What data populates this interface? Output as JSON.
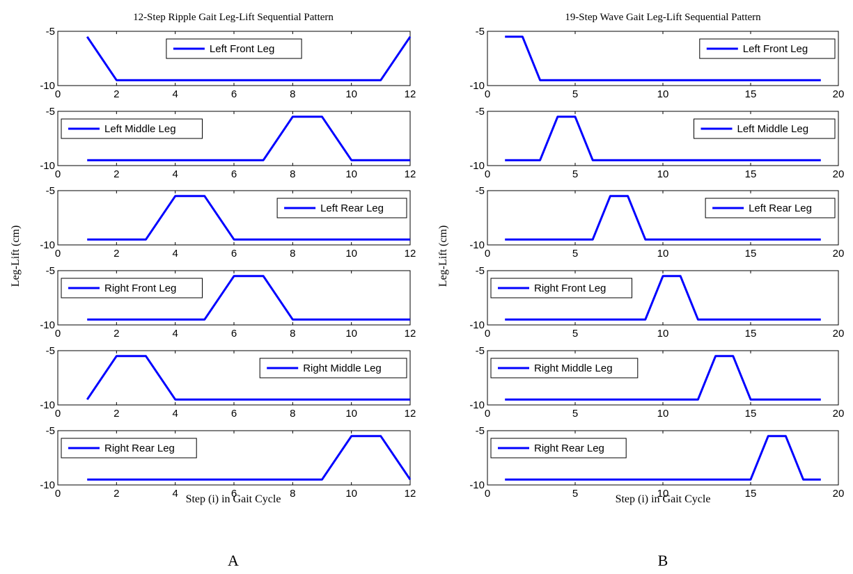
{
  "chart_data": [
    {
      "type": "line",
      "title": "12-Step Ripple Gait Leg-Lift Sequential Pattern",
      "xlabel": "Step (i) in Gait Cycle",
      "ylabel": "Leg-Lift (cm)",
      "panel_label": "A",
      "xlim": [
        0,
        12
      ],
      "ylim": [
        -10,
        -5
      ],
      "xticks": [
        "0",
        "2",
        "4",
        "6",
        "8",
        "10",
        "12"
      ],
      "yticks": [
        "-10",
        "-5"
      ],
      "series_color": "#0000ff",
      "subplots": [
        {
          "name": "Left Front Leg",
          "legend_position": "top-center",
          "x": [
            1,
            2,
            11,
            12
          ],
          "y": [
            -5.5,
            -9.5,
            -9.5,
            -5.5
          ]
        },
        {
          "name": "Left Middle Leg",
          "legend_position": "top-left",
          "x": [
            1,
            7,
            8,
            9,
            10,
            12
          ],
          "y": [
            -9.5,
            -9.5,
            -5.5,
            -5.5,
            -9.5,
            -9.5
          ]
        },
        {
          "name": "Left Rear Leg",
          "legend_position": "top-right",
          "x": [
            1,
            3,
            4,
            5,
            6,
            12
          ],
          "y": [
            -9.5,
            -9.5,
            -5.5,
            -5.5,
            -9.5,
            -9.5
          ]
        },
        {
          "name": "Right Front Leg",
          "legend_position": "top-left",
          "x": [
            1,
            5,
            6,
            7,
            8,
            12
          ],
          "y": [
            -9.5,
            -9.5,
            -5.5,
            -5.5,
            -9.5,
            -9.5
          ]
        },
        {
          "name": "Right Middle Leg",
          "legend_position": "top-right",
          "x": [
            1,
            2,
            3,
            4,
            12
          ],
          "y": [
            -9.5,
            -5.5,
            -5.5,
            -9.5,
            -9.5
          ]
        },
        {
          "name": "Right Rear Leg",
          "legend_position": "top-left",
          "x": [
            1,
            9,
            10,
            11,
            12
          ],
          "y": [
            -9.5,
            -9.5,
            -5.5,
            -5.5,
            -9.5
          ]
        }
      ]
    },
    {
      "type": "line",
      "title": "19-Step Wave Gait Leg-Lift Sequential Pattern",
      "xlabel": "Step (i) in Gait Cycle",
      "ylabel": "Leg-Lift (cm)",
      "panel_label": "B",
      "xlim": [
        0,
        20
      ],
      "ylim": [
        -10,
        -5
      ],
      "xticks": [
        "0",
        "5",
        "10",
        "15",
        "20"
      ],
      "yticks": [
        "-10",
        "-5"
      ],
      "series_color": "#0000ff",
      "subplots": [
        {
          "name": "Left Front Leg",
          "legend_position": "top-right",
          "x": [
            1,
            2,
            3,
            19
          ],
          "y": [
            -5.5,
            -5.5,
            -9.5,
            -9.5
          ]
        },
        {
          "name": "Left Middle Leg",
          "legend_position": "top-right",
          "x": [
            1,
            3,
            4,
            5,
            6,
            19
          ],
          "y": [
            -9.5,
            -9.5,
            -5.5,
            -5.5,
            -9.5,
            -9.5
          ]
        },
        {
          "name": "Left Rear Leg",
          "legend_position": "top-right",
          "x": [
            1,
            6,
            7,
            8,
            9,
            19
          ],
          "y": [
            -9.5,
            -9.5,
            -5.5,
            -5.5,
            -9.5,
            -9.5
          ]
        },
        {
          "name": "Right Front Leg",
          "legend_position": "top-left",
          "x": [
            1,
            9,
            10,
            11,
            12,
            19
          ],
          "y": [
            -9.5,
            -9.5,
            -5.5,
            -5.5,
            -9.5,
            -9.5
          ]
        },
        {
          "name": "Right Middle Leg",
          "legend_position": "top-left",
          "x": [
            1,
            12,
            13,
            14,
            15,
            19
          ],
          "y": [
            -9.5,
            -9.5,
            -5.5,
            -5.5,
            -9.5,
            -9.5
          ]
        },
        {
          "name": "Right Rear Leg",
          "legend_position": "top-left",
          "x": [
            1,
            15,
            16,
            17,
            18,
            19
          ],
          "y": [
            -9.5,
            -9.5,
            -5.5,
            -5.5,
            -9.5,
            -9.5
          ]
        }
      ]
    }
  ]
}
